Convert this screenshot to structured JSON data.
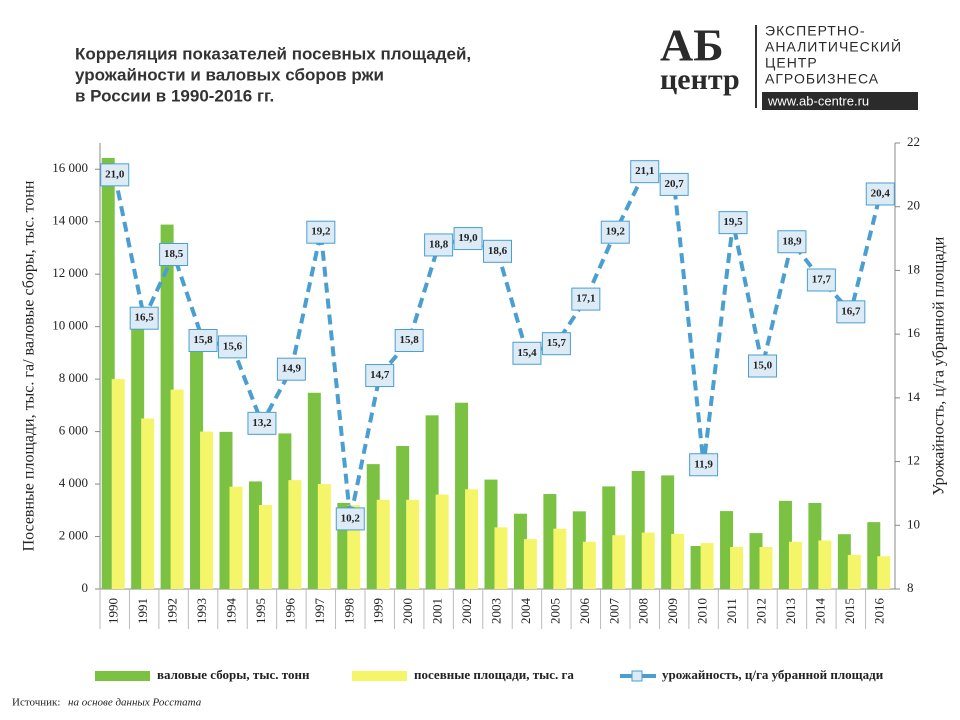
{
  "logo": {
    "mark": "АБ",
    "word": "центр",
    "lines": [
      "ЭКСПЕРТНО-",
      "АНАЛИТИЧЕСКИЙ",
      "ЦЕНТР",
      "АГРОБИЗНЕСА"
    ],
    "url": "www.ab-centre.ru"
  },
  "source": {
    "label": "Источник:",
    "text": "на основе данных Росстата"
  },
  "chart_data": {
    "type": "bar",
    "title": [
      "Корреляция показателей посевных площадей,",
      "урожайности и валовых сборов ржи",
      "в России в 1990-2016 гг."
    ],
    "y_label": "Посевные площади, тыс. га/ валовые сборы, тыс. тонн",
    "y2_label": "Урожайность, ц/га убранной площади",
    "categories": [
      "1990",
      "1991",
      "1992",
      "1993",
      "1994",
      "1995",
      "1996",
      "1997",
      "1998",
      "1999",
      "2000",
      "2001",
      "2002",
      "2003",
      "2004",
      "2005",
      "2006",
      "2007",
      "2008",
      "2009",
      "2010",
      "2011",
      "2012",
      "2013",
      "2014",
      "2015",
      "2016"
    ],
    "series": [
      {
        "name": "валовые сборы, тыс. тонн",
        "type": "bar",
        "color": "#7cc242",
        "values": [
          16430,
          10640,
          13890,
          9170,
          5990,
          4100,
          5930,
          7480,
          3280,
          4760,
          5450,
          6620,
          7100,
          4170,
          2870,
          3620,
          2960,
          3910,
          4500,
          4330,
          1640,
          2970,
          2130,
          3360,
          3280,
          2090,
          2550
        ]
      },
      {
        "name": "посевные площади, тыс. га",
        "type": "bar",
        "color": "#f5f56a",
        "values": [
          8000,
          6500,
          7600,
          6000,
          3900,
          3200,
          4150,
          4000,
          3200,
          3400,
          3400,
          3600,
          3800,
          2350,
          1900,
          2300,
          1800,
          2050,
          2150,
          2100,
          1750,
          1600,
          1600,
          1800,
          1850,
          1300,
          1250
        ]
      },
      {
        "name": "урожайность, ц/га убранной площади",
        "type": "line",
        "axis": "y2",
        "color": "#4a9fd0",
        "values": [
          21.0,
          16.5,
          18.5,
          15.8,
          15.6,
          13.2,
          14.9,
          19.2,
          10.2,
          14.7,
          15.8,
          18.8,
          19.0,
          18.6,
          15.4,
          15.7,
          17.1,
          19.2,
          21.1,
          20.7,
          11.9,
          19.5,
          15.0,
          18.9,
          17.7,
          16.7,
          20.4
        ],
        "value_labels": [
          "21,0",
          "16,5",
          "18,5",
          "15,8",
          "15,6",
          "13,2",
          "14,9",
          "19,2",
          "10,2",
          "14,7",
          "15,8",
          "18,8",
          "19,0",
          "18,6",
          "15,4",
          "15,7",
          "17,1",
          "19,2",
          "21,1",
          "20,7",
          "11,9",
          "19,5",
          "15,0",
          "18,9",
          "17,7",
          "16,7",
          "20,4"
        ]
      }
    ],
    "ylim": [
      0,
      17000
    ],
    "yticks": [
      0,
      {
        "value": 2000,
        "label": "2 000"
      },
      {
        "value": 4000,
        "label": "4 000"
      },
      {
        "value": 6000,
        "label": "6 000"
      },
      {
        "value": 8000,
        "label": "8 000"
      },
      {
        "value": 10000,
        "label": "10 000"
      },
      {
        "value": 12000,
        "label": "12 000"
      },
      {
        "value": 14000,
        "label": "14 000"
      },
      {
        "value": 16000,
        "label": "16 000"
      }
    ],
    "y2lim": [
      8,
      22
    ],
    "y2ticks": [
      8,
      10,
      12,
      14,
      16,
      18,
      20,
      22
    ]
  }
}
